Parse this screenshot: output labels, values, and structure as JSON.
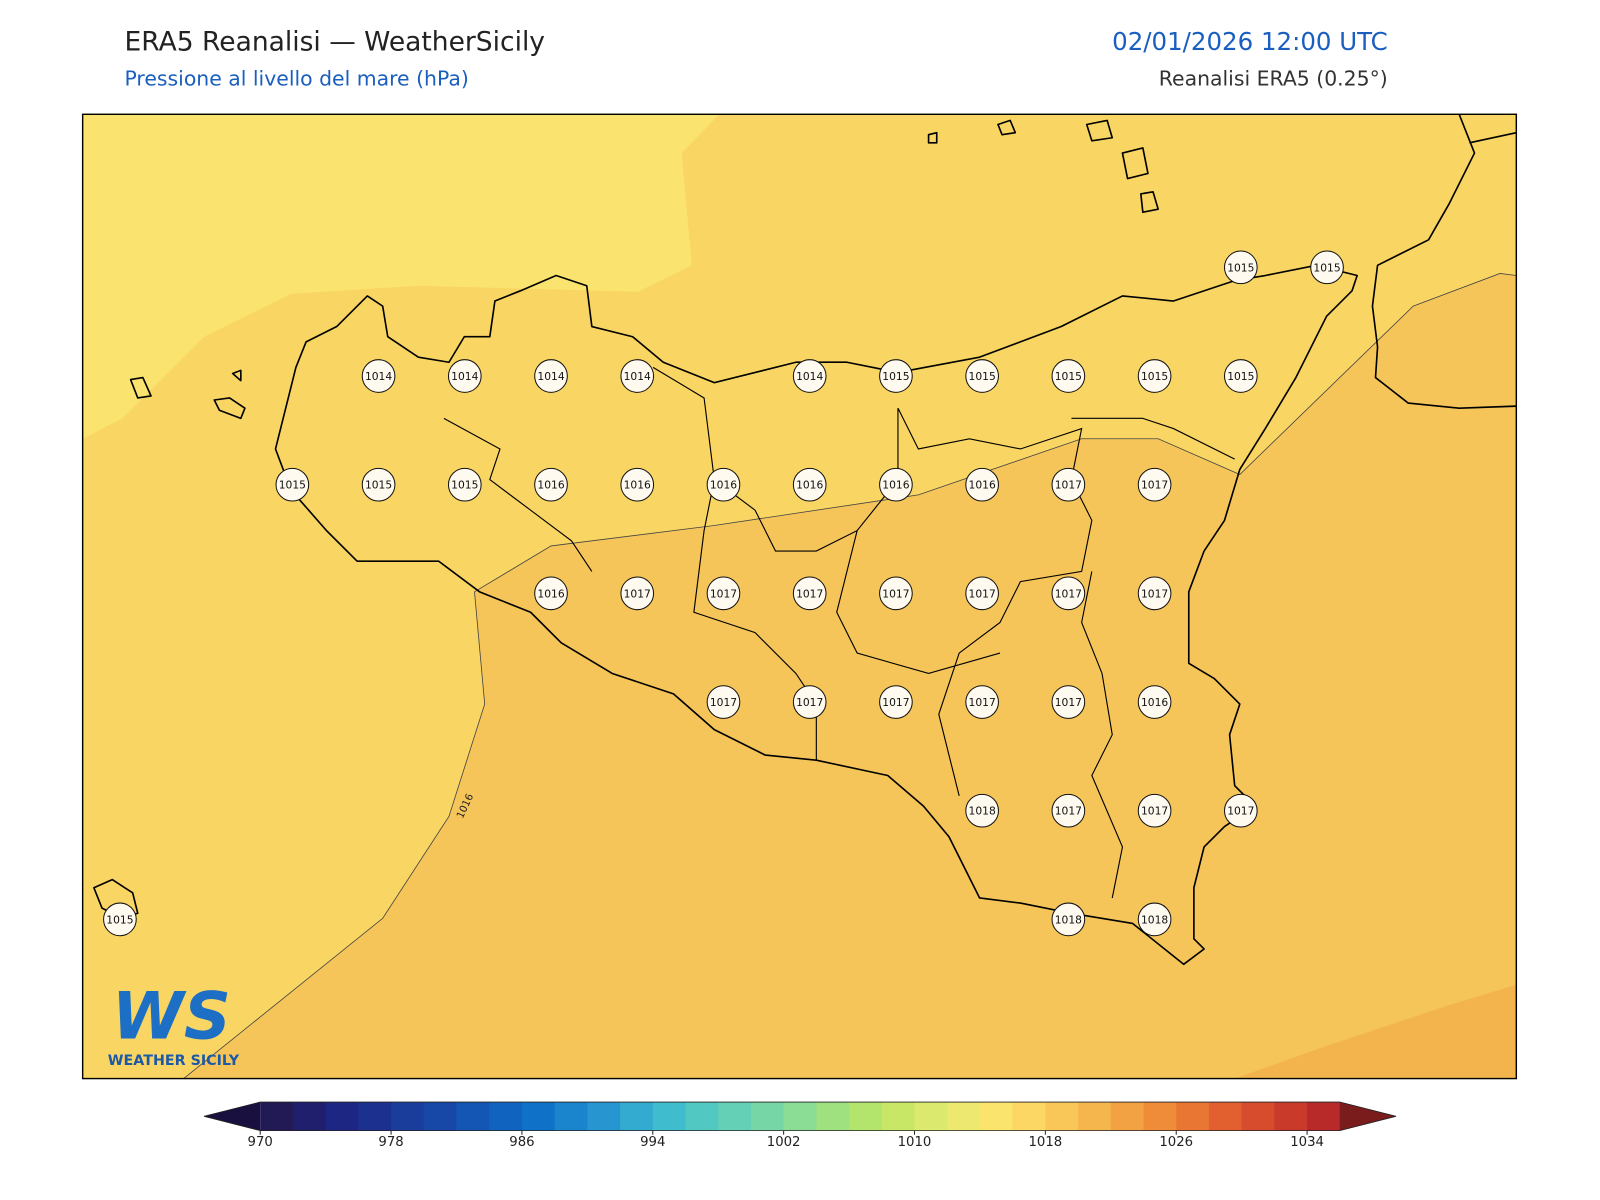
{
  "header": {
    "title": "ERA5 Reanalisi — WeatherSicily",
    "subtitle": "Pressione al livello del mare (hPa)",
    "datetime": "02/01/2026 12:00 UTC",
    "source": "Reanalisi ERA5 (0.25°)"
  },
  "map": {
    "contour_label": 1016,
    "stations": [
      1015,
      1015,
      1014,
      1014,
      1014,
      1014,
      1014,
      1015,
      1015,
      1015,
      1015,
      1015,
      1015,
      1015,
      1015,
      1016,
      1016,
      1016,
      1016,
      1016,
      1016,
      1017,
      1017,
      1016,
      1017,
      1017,
      1017,
      1017,
      1017,
      1017,
      1017,
      1017,
      1017,
      1017,
      1017,
      1017,
      1016,
      1018,
      1017,
      1017,
      1017,
      1015,
      1018,
      1018
    ]
  },
  "colorbar": {
    "lim": [
      970,
      1036
    ],
    "ticks": [
      970,
      978,
      986,
      994,
      1002,
      1010,
      1018,
      1026,
      1034
    ],
    "colors": [
      "#211a55",
      "#1f1f6e",
      "#1d2682",
      "#1c3090",
      "#1a3d9c",
      "#1748a8",
      "#1456b4",
      "#1064bf",
      "#0f72c8",
      "#1a84cc",
      "#2795d0",
      "#33aacf",
      "#3fbccd",
      "#52c8c3",
      "#64d0b6",
      "#77d6a6",
      "#8bdc94",
      "#9fe07f",
      "#b3e46c",
      "#c8e766",
      "#dbe96e",
      "#ece870",
      "#fae46d",
      "#fcd764",
      "#f9c758",
      "#f5b64d",
      "#f2a242",
      "#ee8c3a",
      "#e97633",
      "#e2602f",
      "#d64c2c",
      "#c93a2b",
      "#b82a2a"
    ],
    "under": "#1a1040",
    "over": "#7a1c1c"
  },
  "logo": {
    "mark": "WS",
    "text": "WEATHER SICILY"
  }
}
